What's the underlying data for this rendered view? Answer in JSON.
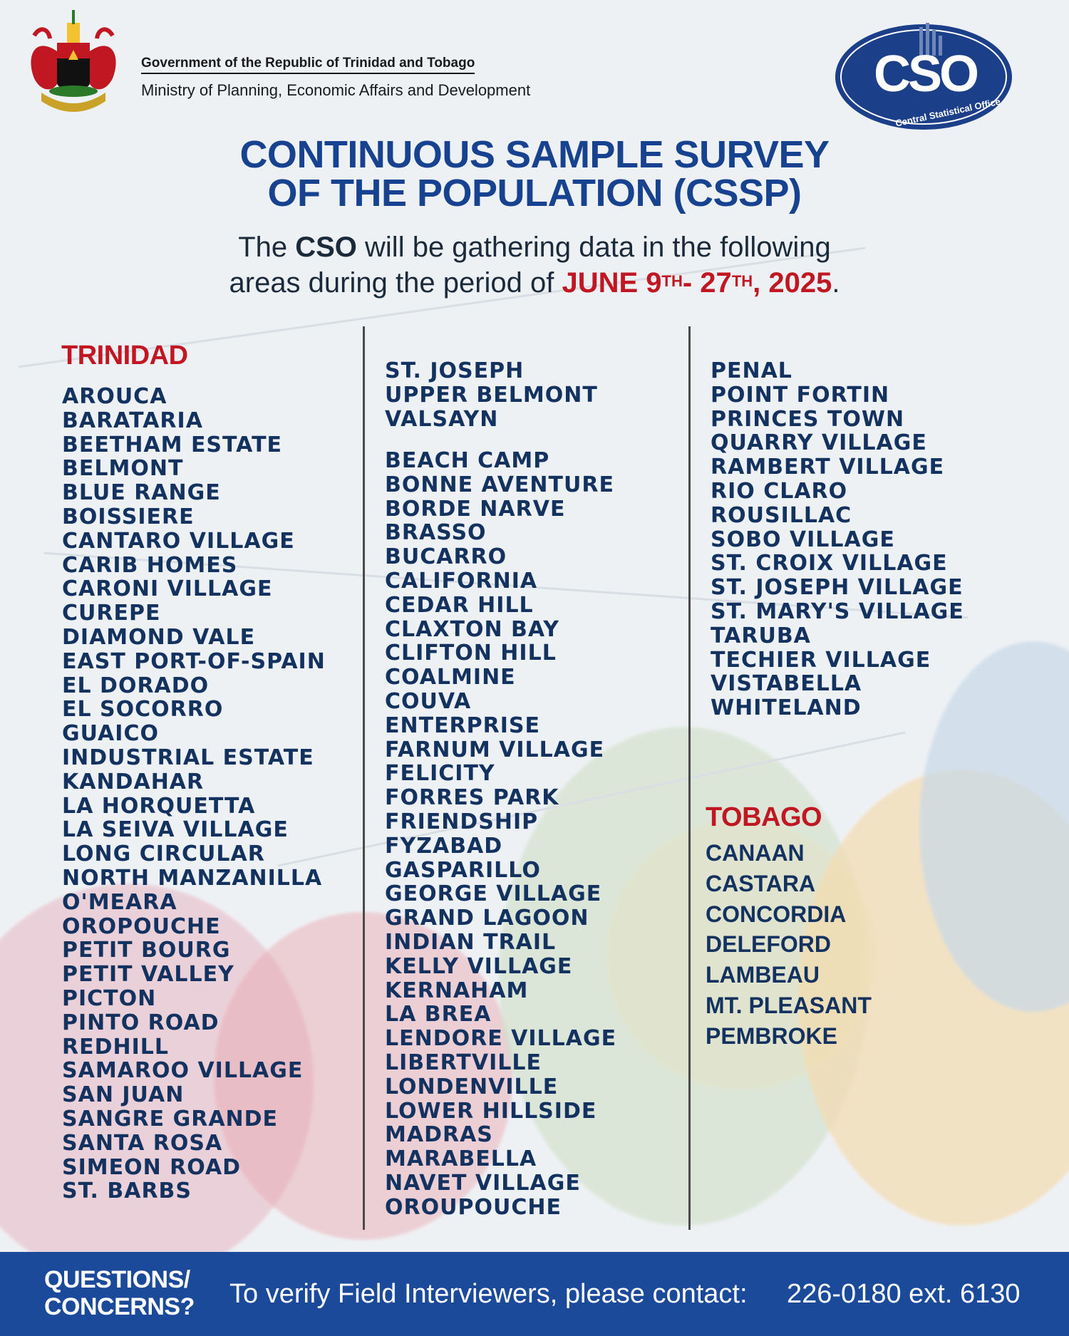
{
  "header": {
    "government": "Government of the Republic of Trinidad and Tobago",
    "ministry": "Ministry of Planning, Economic Affairs and Development",
    "cso_logo_text": "CSO",
    "cso_logo_subtitle": "Central Statistical Office",
    "coat_of_arms_icon": "coat-of-arms-icon"
  },
  "title": {
    "line1": "CONTINUOUS SAMPLE SURVEY",
    "line2": "OF THE POPULATION (CSSP)"
  },
  "intro": {
    "line1_pre": "The ",
    "line1_strong": "CSO",
    "line1_post": " will be gathering data in the following",
    "line2_pre": "areas during the period of ",
    "date_part1": "JUNE 9",
    "date_sup1": "TH",
    "date_part2": "- 27",
    "date_sup2": "TH",
    "date_part3": ", 2025",
    "line2_end": "."
  },
  "trinidad": {
    "heading": "TRINIDAD",
    "col1": [
      "AROUCA",
      "BARATARIA",
      "BEETHAM ESTATE",
      "BELMONT",
      "BLUE RANGE",
      "BOISSIERE",
      "CANTARO VILLAGE",
      "CARIB HOMES",
      "CARONI VILLAGE",
      "CUREPE",
      "DIAMOND VALE",
      "EAST PORT-OF-SPAIN",
      "EL DORADO",
      "EL SOCORRO",
      "GUAICO",
      "INDUSTRIAL ESTATE",
      "KANDAHAR",
      "LA HORQUETTA",
      "LA SEIVA VILLAGE",
      "LONG CIRCULAR",
      "NORTH MANZANILLA",
      "O'MEARA",
      "OROPOUCHE",
      "PETIT BOURG",
      "PETIT VALLEY",
      "PICTON",
      "PINTO ROAD",
      "REDHILL",
      "SAMAROO VILLAGE",
      "SAN JUAN",
      "SANGRE GRANDE",
      "SANTA ROSA",
      "SIMEON ROAD",
      "ST. BARBS"
    ],
    "col2a": [
      "ST. JOSEPH",
      "UPPER BELMONT",
      "VALSAYN"
    ],
    "col2b": [
      "BEACH CAMP",
      "BONNE AVENTURE",
      "BORDE NARVE",
      "BRASSO",
      "BUCARRO",
      "CALIFORNIA",
      "CEDAR HILL",
      "CLAXTON BAY",
      "CLIFTON HILL",
      "COALMINE",
      "COUVA",
      "ENTERPRISE",
      "FARNUM VILLAGE",
      "FELICITY",
      "FORRES PARK",
      "FRIENDSHIP",
      "FYZABAD",
      "GASPARILLO",
      "GEORGE VILLAGE",
      "GRAND LAGOON",
      "INDIAN TRAIL",
      "KELLY VILLAGE",
      "KERNAHAM",
      "LA BREA",
      "LENDORE VILLAGE",
      "LIBERTVILLE",
      "LONDENVILLE",
      "LOWER HILLSIDE",
      "MADRAS",
      "MARABELLA",
      "NAVET VILLAGE",
      "OROUPOUCHE"
    ],
    "col3": [
      "PENAL",
      "POINT FORTIN",
      "PRINCES TOWN",
      "QUARRY VILLAGE",
      "RAMBERT VILLAGE",
      "RIO CLARO",
      "ROUSILLAC",
      "SOBO VILLAGE",
      "ST. CROIX VILLAGE",
      "ST. JOSEPH VILLAGE",
      "ST. MARY'S VILLAGE",
      "TARUBA",
      "TECHIER VILLAGE",
      "VISTABELLA",
      "WHITELAND"
    ]
  },
  "tobago": {
    "heading": "TOBAGO",
    "items": [
      "CANAAN",
      "CASTARA",
      "CONCORDIA",
      "DELEFORD",
      "LAMBEAU",
      "MT. PLEASANT",
      "PEMBROKE"
    ]
  },
  "footer": {
    "question_line1": "QUESTIONS/",
    "question_line2": "CONCERNS?",
    "verify_text": "To verify Field Interviewers, please contact:",
    "phone": "226-0180 ext. 6130"
  },
  "colors": {
    "title_blue": "#17428f",
    "list_navy": "#13325f",
    "heading_red": "#c11722",
    "footer_blue": "#1c4a9a"
  }
}
